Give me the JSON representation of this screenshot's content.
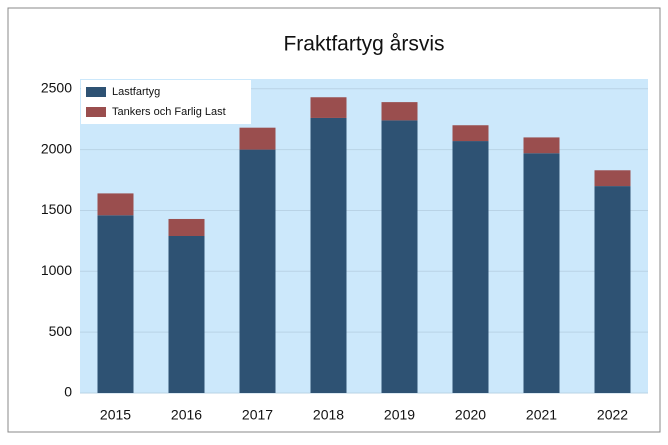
{
  "chart_data": {
    "type": "stacked_bar",
    "title": "Fraktfartyg årsvis",
    "categories": [
      "2015",
      "2016",
      "2017",
      "2018",
      "2019",
      "2020",
      "2021",
      "2022"
    ],
    "series": [
      {
        "name": "Lastfartyg",
        "color": "#2e5273",
        "values": [
          1460,
          1290,
          2000,
          2260,
          2240,
          2070,
          1970,
          1700
        ]
      },
      {
        "name": "Tankers och Farlig Last",
        "color": "#9a4e4e",
        "values": [
          180,
          140,
          180,
          170,
          150,
          130,
          130,
          130
        ]
      }
    ],
    "ylim": [
      0,
      2580
    ],
    "yticks": [
      0,
      500,
      1000,
      1500,
      2000,
      2500
    ],
    "grid": true,
    "legend": "upper left"
  }
}
